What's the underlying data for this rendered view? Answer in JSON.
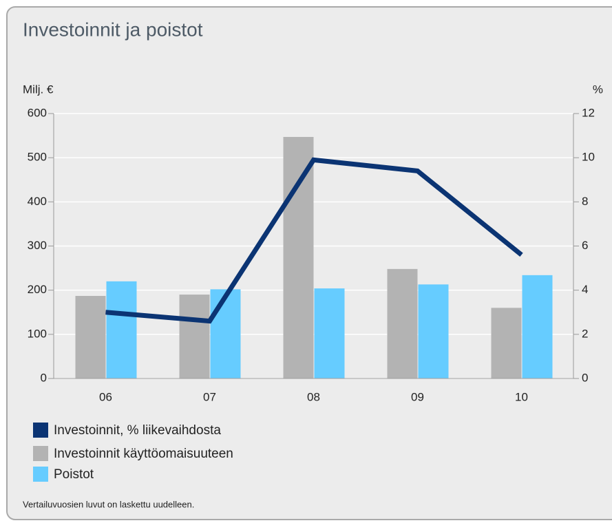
{
  "chart_data": {
    "type": "bar",
    "title": "Investoinnit ja poistot",
    "y_label": "Milj. €",
    "y2_label": "%",
    "categories": [
      "06",
      "07",
      "08",
      "09",
      "10"
    ],
    "series": [
      {
        "name": "Investoinnit, % liikevaihdosta",
        "type": "line",
        "axis": "y2",
        "color": "#0b3473",
        "values": [
          3.0,
          2.6,
          9.9,
          9.4,
          5.6
        ]
      },
      {
        "name": "Investoinnit käyttöomaisuuteen",
        "type": "bar",
        "color": "#b3b3b3",
        "values": [
          187,
          190,
          547,
          248,
          160
        ]
      },
      {
        "name": "Poistot",
        "type": "bar",
        "color": "#66ccff",
        "values": [
          220,
          202,
          204,
          213,
          234
        ]
      }
    ],
    "ylim": [
      0,
      600
    ],
    "yticks": [
      0,
      100,
      200,
      300,
      400,
      500,
      600
    ],
    "y2lim": [
      0,
      12
    ],
    "y2ticks": [
      0,
      2,
      4,
      6,
      8,
      10,
      12
    ],
    "grid": true,
    "footnote": "Vertailuvuosien luvut on laskettu uudelleen."
  }
}
